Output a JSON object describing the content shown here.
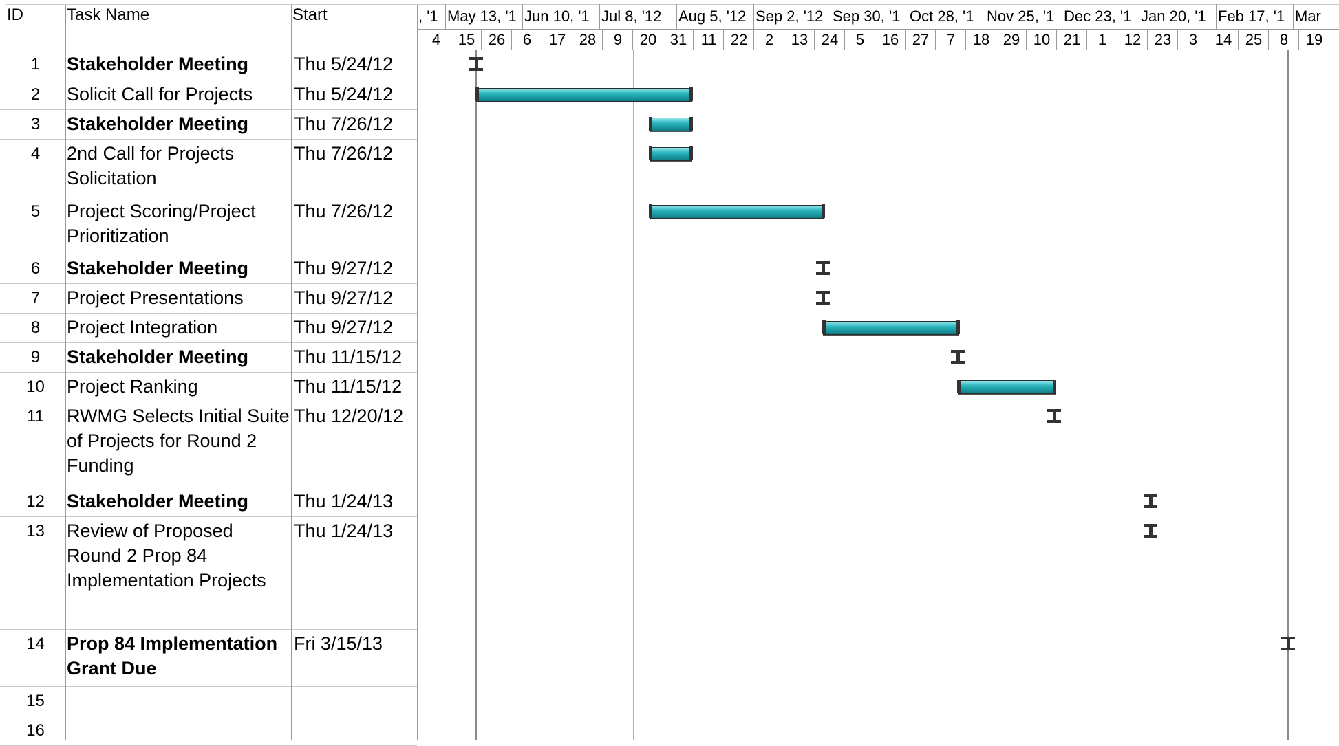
{
  "table": {
    "headers": {
      "id": "ID",
      "name": "Task Name",
      "start": "Start"
    },
    "rows": [
      {
        "id": "1",
        "name": "Stakeholder Meeting",
        "start": "Thu 5/24/12",
        "bold": true
      },
      {
        "id": "2",
        "name": "Solicit Call for Projects",
        "start": "Thu 5/24/12",
        "bold": false
      },
      {
        "id": "3",
        "name": "Stakeholder Meeting",
        "start": "Thu 7/26/12",
        "bold": true
      },
      {
        "id": "4",
        "name": "2nd Call for Projects Solicitation",
        "start": "Thu 7/26/12",
        "bold": false
      },
      {
        "id": "5",
        "name": "Project Scoring/Project Prioritization",
        "start": "Thu 7/26/12",
        "bold": false
      },
      {
        "id": "6",
        "name": "Stakeholder Meeting",
        "start": "Thu 9/27/12",
        "bold": true
      },
      {
        "id": "7",
        "name": "Project Presentations",
        "start": "Thu 9/27/12",
        "bold": false
      },
      {
        "id": "8",
        "name": "Project Integration",
        "start": "Thu 9/27/12",
        "bold": false
      },
      {
        "id": "9",
        "name": "Stakeholder Meeting",
        "start": "Thu 11/15/12",
        "bold": true
      },
      {
        "id": "10",
        "name": "Project Ranking",
        "start": "Thu 11/15/12",
        "bold": false
      },
      {
        "id": "11",
        "name": "RWMG Selects Initial Suite of Projects for Round 2 Funding",
        "start": "Thu 12/20/12",
        "bold": false
      },
      {
        "id": "12",
        "name": "Stakeholder Meeting",
        "start": "Thu 1/24/13",
        "bold": true
      },
      {
        "id": "13",
        "name": "Review of Proposed Round 2 Prop 84 Implementation Projects",
        "start": "Thu 1/24/13",
        "bold": false
      },
      {
        "id": "14",
        "name": "Prop 84 Implementation Grant Due",
        "start": "Fri 3/15/13",
        "bold": true
      },
      {
        "id": "15",
        "name": "",
        "start": "",
        "bold": false
      },
      {
        "id": "16",
        "name": "",
        "start": "",
        "bold": false
      }
    ]
  },
  "timescale": {
    "major": [
      ", '1",
      "May 13, '1",
      "Jun 10, '1",
      "Jul 8, '12",
      "Aug 5, '12",
      "Sep 2, '12",
      "Sep 30, '1",
      "Oct 28, '1",
      "Nov 25, '1",
      "Dec 23, '1",
      "Jan 20, '1",
      "Feb 17, '1",
      "Mar"
    ],
    "minor": [
      "4",
      "15",
      "26",
      "6",
      "17",
      "28",
      "9",
      "20",
      "31",
      "11",
      "22",
      "2",
      "13",
      "24",
      "5",
      "16",
      "27",
      "7",
      "18",
      "29",
      "10",
      "21",
      "1",
      "12",
      "23",
      "3",
      "14",
      "25",
      "8",
      "19"
    ]
  },
  "gantt": {
    "items": [
      {
        "row": 1,
        "type": "milestone",
        "start": "2012-05-24"
      },
      {
        "row": 2,
        "type": "bar",
        "start": "2012-05-24",
        "finish": "2012-08-10"
      },
      {
        "row": 3,
        "type": "bar",
        "start": "2012-07-26",
        "finish": "2012-08-10"
      },
      {
        "row": 4,
        "type": "bar",
        "start": "2012-07-26",
        "finish": "2012-08-10"
      },
      {
        "row": 5,
        "type": "bar",
        "start": "2012-07-26",
        "finish": "2012-09-27"
      },
      {
        "row": 6,
        "type": "milestone",
        "start": "2012-09-27"
      },
      {
        "row": 7,
        "type": "milestone",
        "start": "2012-09-27"
      },
      {
        "row": 8,
        "type": "bar",
        "start": "2012-09-27",
        "finish": "2012-11-15"
      },
      {
        "row": 9,
        "type": "milestone",
        "start": "2012-11-15"
      },
      {
        "row": 10,
        "type": "bar",
        "start": "2012-11-15",
        "finish": "2012-12-20"
      },
      {
        "row": 11,
        "type": "milestone",
        "start": "2012-12-20"
      },
      {
        "row": 12,
        "type": "milestone",
        "start": "2013-01-24"
      },
      {
        "row": 13,
        "type": "milestone",
        "start": "2013-01-24"
      },
      {
        "row": 14,
        "type": "milestone",
        "start": "2013-03-15"
      }
    ],
    "status_date": "2012-07-20",
    "project_start": "2012-05-24",
    "project_finish": "2013-03-15",
    "colors": {
      "bar": "#1fa5ad",
      "status_line": "#f0a050",
      "boundary": "#8a8a8a",
      "milestone": "#333333"
    }
  }
}
